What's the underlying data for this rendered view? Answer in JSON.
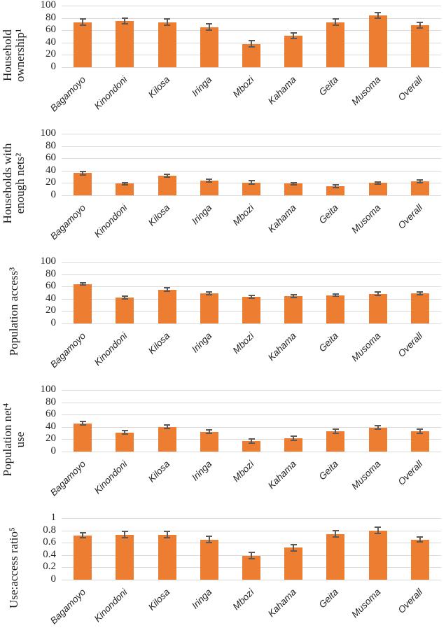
{
  "figure": {
    "description": "Five stacked bar charts of ITN (bed net) indicators by district with error bars",
    "colors": {
      "bar": "#ED7D31",
      "error_bar": "#595959",
      "gridline": "#DADADA",
      "text": "#262626"
    }
  },
  "categories": [
    "Bagamoyo",
    "Kinondoni",
    "Kilosa",
    "Iringa",
    "Mbozi",
    "Kahama",
    "Geita",
    "Musoma",
    "Overall"
  ],
  "chart_data": [
    {
      "type": "bar",
      "title": "",
      "ylabel": "Household ownership¹",
      "ylabel_lines": [
        "Household",
        "ownership¹"
      ],
      "xlabel": "",
      "categories": [
        "Bagamoyo",
        "Kinondoni",
        "Kilosa",
        "Iringa",
        "Mbozi",
        "Kahama",
        "Geita",
        "Musoma",
        "Overall"
      ],
      "values": [
        73,
        75,
        73,
        65,
        38,
        51,
        73,
        84,
        68
      ],
      "errors": [
        5,
        5,
        5,
        5,
        5,
        4.5,
        5,
        4.5,
        4.5
      ],
      "ylim": [
        0,
        100
      ],
      "yticks": [
        0,
        20,
        40,
        60,
        80,
        100
      ],
      "grid": true,
      "legend": false
    },
    {
      "type": "bar",
      "title": "",
      "ylabel": "Households with enough nets²",
      "ylabel_lines": [
        "Households with",
        "enough nets²"
      ],
      "xlabel": "",
      "categories": [
        "Bagamoyo",
        "Kinondoni",
        "Kilosa",
        "Iringa",
        "Mbozi",
        "Kahama",
        "Geita",
        "Musoma",
        "Overall"
      ],
      "values": [
        36,
        19,
        32,
        24,
        21,
        19,
        15,
        20,
        23
      ],
      "errors": [
        3,
        2,
        2.5,
        2.5,
        2.5,
        2,
        2.5,
        2,
        2.5
      ],
      "ylim": [
        0,
        100
      ],
      "yticks": [
        0,
        20,
        40,
        60,
        80,
        100
      ],
      "grid": true,
      "legend": false
    },
    {
      "type": "bar",
      "title": "",
      "ylabel": "Population access³",
      "ylabel_lines": [
        "Population access³"
      ],
      "xlabel": "",
      "categories": [
        "Bagamoyo",
        "Kinondoni",
        "Kilosa",
        "Iringa",
        "Mbozi",
        "Kahama",
        "Geita",
        "Musoma",
        "Overall"
      ],
      "values": [
        64,
        42,
        55,
        49,
        43,
        44,
        46,
        48,
        49
      ],
      "errors": [
        2,
        2.5,
        3,
        2.5,
        2.5,
        2.5,
        2,
        3,
        2
      ],
      "ylim": [
        0,
        100
      ],
      "yticks": [
        0,
        20,
        40,
        60,
        80,
        100
      ],
      "grid": true,
      "legend": false
    },
    {
      "type": "bar",
      "title": "",
      "ylabel": "Population net⁴ use",
      "ylabel_lines": [
        "Population net⁴",
        "use"
      ],
      "xlabel": "",
      "categories": [
        "Bagamoyo",
        "Kinondoni",
        "Kilosa",
        "Iringa",
        "Mbozi",
        "Kahama",
        "Geita",
        "Musoma",
        "Overall"
      ],
      "values": [
        46,
        31,
        40,
        32,
        17,
        22,
        33,
        39,
        33
      ],
      "errors": [
        3,
        3,
        3,
        3,
        3.5,
        3.5,
        3,
        3,
        3
      ],
      "ylim": [
        0,
        100
      ],
      "yticks": [
        0,
        20,
        40,
        60,
        80,
        100
      ],
      "grid": true,
      "legend": false
    },
    {
      "type": "bar",
      "title": "",
      "ylabel": "Use:access ratio⁵",
      "ylabel_lines": [
        "Use:access ratio⁵"
      ],
      "xlabel": "",
      "categories": [
        "Bagamoyo",
        "Kinondoni",
        "Kilosa",
        "Iringa",
        "Mbozi",
        "Kahama",
        "Geita",
        "Musoma",
        "Overall"
      ],
      "values": [
        0.72,
        0.73,
        0.73,
        0.65,
        0.39,
        0.52,
        0.74,
        0.8,
        0.65
      ],
      "errors": [
        0.04,
        0.05,
        0.05,
        0.05,
        0.05,
        0.05,
        0.05,
        0.05,
        0.04
      ],
      "ylim": [
        0,
        1
      ],
      "yticks": [
        0,
        0.2,
        0.4,
        0.6,
        0.8,
        1
      ],
      "grid": true,
      "legend": false
    }
  ]
}
